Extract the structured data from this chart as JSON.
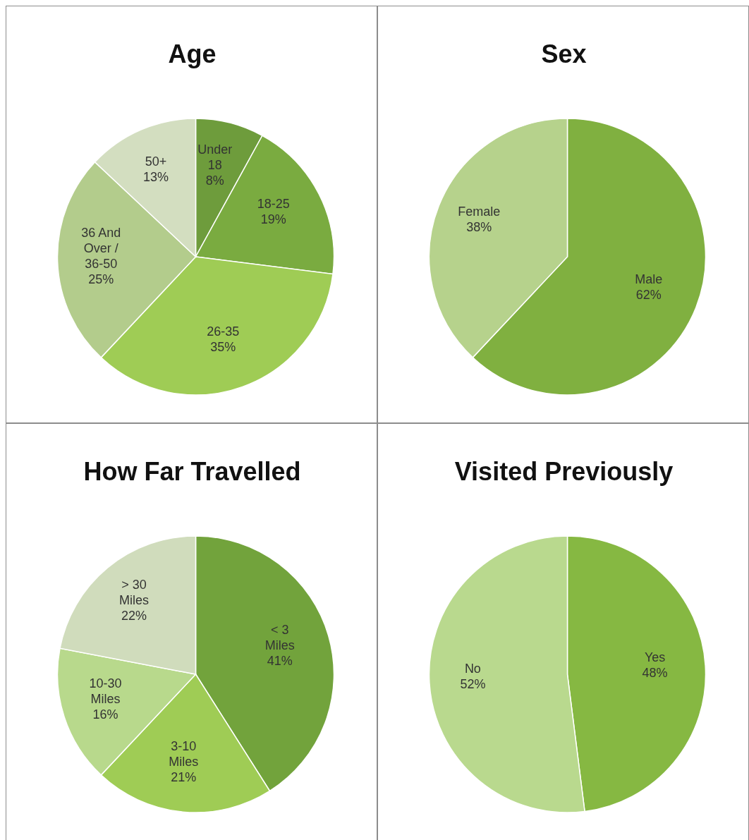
{
  "chart_data": [
    {
      "type": "pie",
      "title": "Age",
      "categories": [
        "Under 18",
        "18-25",
        "26-35",
        "36 And Over / 36-50",
        "50+"
      ],
      "values": [
        8,
        19,
        35,
        25,
        13
      ],
      "value_labels": [
        "8%",
        "19%",
        "35%",
        "25%",
        "13%"
      ],
      "colors": [
        "#6e9c3c",
        "#7aab40",
        "#9fcc55",
        "#b3cc8c",
        "#d3dec0"
      ]
    },
    {
      "type": "pie",
      "title": "Sex",
      "categories": [
        "Male",
        "Female"
      ],
      "values": [
        62,
        38
      ],
      "value_labels": [
        "62%",
        "38%"
      ],
      "colors": [
        "#80b040",
        "#b6d28c"
      ]
    },
    {
      "type": "pie",
      "title": "How Far Travelled",
      "categories": [
        "< 3 Miles",
        "3-10 Miles",
        "10-30 Miles",
        "> 30 Miles"
      ],
      "values": [
        41,
        21,
        16,
        22
      ],
      "value_labels": [
        "41%",
        "21%",
        "16%",
        "22%"
      ],
      "colors": [
        "#72a33c",
        "#9fcc55",
        "#b8d98c",
        "#d0dcbc"
      ]
    },
    {
      "type": "pie",
      "title": "Visited Previously",
      "categories": [
        "Yes",
        "No"
      ],
      "values": [
        48,
        52
      ],
      "value_labels": [
        "48%",
        "52%"
      ],
      "colors": [
        "#86b842",
        "#b9d98e"
      ]
    }
  ]
}
